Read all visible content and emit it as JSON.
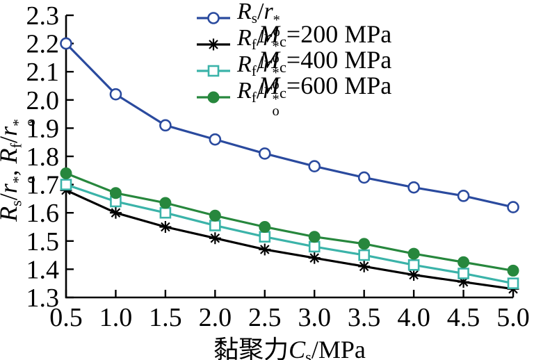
{
  "chart_data": {
    "type": "line",
    "title": "",
    "xlabel": "黏聚力*{C}_{s}/MPa",
    "ylabel": "*{R}_{s}/*{r}${*|o}, *{R}_{f}/*{r}${*|o}",
    "xlim": [
      0.5,
      5.0
    ],
    "ylim": [
      1.3,
      2.3
    ],
    "x_ticks": [
      "0.5",
      "1.0",
      "1.5",
      "2.0",
      "2.5",
      "3.0",
      "3.5",
      "4.0",
      "4.5",
      "5.0"
    ],
    "y_ticks": [
      "1.3",
      "1.4",
      "1.5",
      "1.6",
      "1.7",
      "1.8",
      "1.9",
      "2.0",
      "2.1",
      "2.2",
      "2.3"
    ],
    "grid": false,
    "legend_position": "top-inside",
    "x": [
      0.5,
      1.0,
      1.5,
      2.0,
      2.5,
      3.0,
      3.5,
      4.0,
      4.5,
      5.0
    ],
    "series": [
      {
        "name": "Rs/ro*",
        "label": "*{R}_{s}/*{r}${*|o}",
        "color": "#2a4a9e",
        "marker": "circle-open",
        "values": [
          2.2,
          2.02,
          1.91,
          1.86,
          1.81,
          1.765,
          1.725,
          1.69,
          1.66,
          1.62
        ]
      },
      {
        "name": "Rf/ro* (Mc=200 MPa)",
        "label": "*{R}_{f}/*{r}${*|o}",
        "color": "#000000",
        "marker": "asterisk",
        "values": [
          1.68,
          1.6,
          1.55,
          1.51,
          1.47,
          1.44,
          1.41,
          1.38,
          1.355,
          1.33
        ]
      },
      {
        "name": "Rf/ro* (Mc=400 MPa)",
        "label": "*{R}_{f}/*{r}${*|o}",
        "color": "#3bb3a9",
        "marker": "square-open",
        "values": [
          1.7,
          1.64,
          1.6,
          1.555,
          1.515,
          1.48,
          1.45,
          1.415,
          1.385,
          1.35
        ]
      },
      {
        "name": "Rf/ro* (Mc=600 MPa)",
        "label": "*{R}_{f}/*{r}${*|o}",
        "color": "#27873d",
        "marker": "circle-filled",
        "values": [
          1.74,
          1.67,
          1.635,
          1.59,
          1.55,
          1.515,
          1.49,
          1.455,
          1.425,
          1.395
        ]
      }
    ],
    "annotations": [
      "*{M}_{c}=200 MPa",
      "*{M}_{c}=400 MPa",
      "*{M}_{c}=600 MPa"
    ]
  },
  "colors": {
    "background": "#ffffff",
    "axis": "#000000",
    "text": "#000000"
  }
}
